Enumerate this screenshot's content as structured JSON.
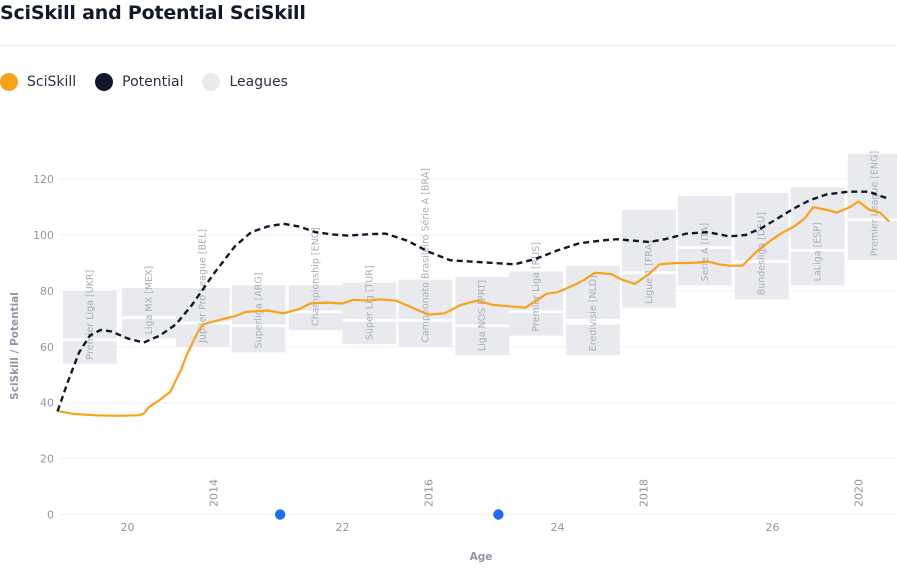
{
  "header": {
    "title": "SciSkill and Potential SciSkill"
  },
  "legend": [
    {
      "label": "SciSkill",
      "color": "#f9a11b"
    },
    {
      "label": "Potential",
      "color": "#10182a"
    },
    {
      "label": "Leagues",
      "color": "#e9eaee"
    }
  ],
  "chart_data": {
    "type": "line",
    "xlabel": "Age",
    "ylabel": "SciSkill / Potential",
    "xlim": [
      19.35,
      27.15
    ],
    "ylim": [
      0,
      130
    ],
    "x_ticks": [
      20,
      22,
      24,
      26
    ],
    "y_ticks": [
      0,
      20,
      40,
      60,
      80,
      100,
      120
    ],
    "year_ticks": [
      {
        "label": "2014",
        "x": 20.8
      },
      {
        "label": "2016",
        "x": 22.8
      },
      {
        "label": "2018",
        "x": 24.8
      },
      {
        "label": "2020",
        "x": 26.8
      }
    ],
    "markers": [
      {
        "x": 21.42,
        "y": 0
      },
      {
        "x": 23.45,
        "y": 0
      }
    ],
    "grid": true,
    "series": [
      {
        "name": "SciSkill",
        "color": "#f9a11b",
        "style": "solid",
        "points": [
          [
            19.35,
            37
          ],
          [
            19.5,
            36
          ],
          [
            19.7,
            35.5
          ],
          [
            19.9,
            35.3
          ],
          [
            20.1,
            35.5
          ],
          [
            20.15,
            36
          ],
          [
            20.2,
            38.5
          ],
          [
            20.3,
            41
          ],
          [
            20.4,
            44
          ],
          [
            20.45,
            48
          ],
          [
            20.5,
            52
          ],
          [
            20.55,
            57
          ],
          [
            20.6,
            61
          ],
          [
            20.65,
            65
          ],
          [
            20.7,
            68
          ],
          [
            20.85,
            69.5
          ],
          [
            21.0,
            71
          ],
          [
            21.1,
            72.5
          ],
          [
            21.3,
            73
          ],
          [
            21.45,
            72
          ],
          [
            21.6,
            73.5
          ],
          [
            21.7,
            75.5
          ],
          [
            21.85,
            75.8
          ],
          [
            22.0,
            75.5
          ],
          [
            22.1,
            76.8
          ],
          [
            22.25,
            76.5
          ],
          [
            22.35,
            77
          ],
          [
            22.5,
            76.5
          ],
          [
            22.65,
            74
          ],
          [
            22.8,
            71.5
          ],
          [
            22.95,
            72
          ],
          [
            23.1,
            75
          ],
          [
            23.25,
            76.5
          ],
          [
            23.4,
            75
          ],
          [
            23.55,
            74.5
          ],
          [
            23.7,
            74
          ],
          [
            23.82,
            77
          ],
          [
            23.9,
            79
          ],
          [
            24.0,
            79.5
          ],
          [
            24.15,
            82
          ],
          [
            24.25,
            84
          ],
          [
            24.35,
            86.5
          ],
          [
            24.5,
            86
          ],
          [
            24.6,
            84
          ],
          [
            24.72,
            82.5
          ],
          [
            24.85,
            86
          ],
          [
            24.95,
            89.5
          ],
          [
            25.1,
            90
          ],
          [
            25.25,
            90
          ],
          [
            25.4,
            90.5
          ],
          [
            25.5,
            89.5
          ],
          [
            25.6,
            89
          ],
          [
            25.72,
            89
          ],
          [
            25.85,
            94
          ],
          [
            25.98,
            98
          ],
          [
            26.1,
            101
          ],
          [
            26.2,
            103
          ],
          [
            26.3,
            106
          ],
          [
            26.38,
            110
          ],
          [
            26.5,
            109
          ],
          [
            26.6,
            108
          ],
          [
            26.72,
            110
          ],
          [
            26.8,
            112
          ],
          [
            26.9,
            109
          ],
          [
            27.0,
            108
          ],
          [
            27.08,
            105
          ]
        ]
      },
      {
        "name": "Potential",
        "color": "#10182a",
        "style": "dashed",
        "points": [
          [
            19.35,
            37
          ],
          [
            19.45,
            48
          ],
          [
            19.55,
            58
          ],
          [
            19.65,
            64
          ],
          [
            19.75,
            66
          ],
          [
            19.85,
            65.5
          ],
          [
            20.0,
            63
          ],
          [
            20.15,
            61.5
          ],
          [
            20.3,
            64
          ],
          [
            20.45,
            68
          ],
          [
            20.6,
            75
          ],
          [
            20.8,
            86
          ],
          [
            21.0,
            96
          ],
          [
            21.15,
            101
          ],
          [
            21.3,
            103
          ],
          [
            21.45,
            104
          ],
          [
            21.6,
            103
          ],
          [
            21.75,
            101
          ],
          [
            21.9,
            100.2
          ],
          [
            22.05,
            99.8
          ],
          [
            22.25,
            100.3
          ],
          [
            22.4,
            100.5
          ],
          [
            22.6,
            98
          ],
          [
            22.8,
            94
          ],
          [
            23.0,
            91
          ],
          [
            23.2,
            90.5
          ],
          [
            23.4,
            90
          ],
          [
            23.6,
            89.5
          ],
          [
            23.8,
            91.5
          ],
          [
            24.0,
            94.5
          ],
          [
            24.2,
            97
          ],
          [
            24.4,
            98
          ],
          [
            24.55,
            98.5
          ],
          [
            24.7,
            98
          ],
          [
            24.85,
            97.5
          ],
          [
            25.0,
            98.5
          ],
          [
            25.2,
            100.5
          ],
          [
            25.4,
            101
          ],
          [
            25.6,
            99.5
          ],
          [
            25.75,
            100
          ],
          [
            25.9,
            102.5
          ],
          [
            26.05,
            106
          ],
          [
            26.2,
            109.5
          ],
          [
            26.35,
            112.5
          ],
          [
            26.5,
            114.5
          ],
          [
            26.7,
            115.5
          ],
          [
            26.9,
            115.5
          ],
          [
            27.0,
            114
          ],
          [
            27.08,
            113
          ]
        ]
      }
    ],
    "leagues": [
      {
        "label": "Premier Liga [UKR]",
        "x0": 19.4,
        "x1": 19.9,
        "upper": [
          63,
          80
        ],
        "lower": [
          54,
          62
        ]
      },
      {
        "label": "Liga MX [MEX]",
        "x0": 19.95,
        "x1": 20.45,
        "upper": [
          71,
          81
        ],
        "lower": [
          63,
          70
        ]
      },
      {
        "label": "Jupiler Pro League [BEL]",
        "x0": 20.45,
        "x1": 20.95,
        "upper": [
          69,
          81
        ],
        "lower": [
          60,
          68
        ]
      },
      {
        "label": "Superliga [ARG]",
        "x0": 20.97,
        "x1": 21.47,
        "upper": [
          68,
          82
        ],
        "lower": [
          58,
          67
        ]
      },
      {
        "label": "Championship [ENG]",
        "x0": 21.5,
        "x1": 22.0,
        "upper": [
          73,
          82
        ],
        "lower": [
          66,
          72
        ]
      },
      {
        "label": "Süper Lig [TUR]",
        "x0": 22.0,
        "x1": 22.5,
        "upper": [
          70,
          83
        ],
        "lower": [
          61,
          69
        ]
      },
      {
        "label": "Campeonato Brasileiro Série A [BRA]",
        "x0": 22.52,
        "x1": 23.02,
        "upper": [
          70,
          84
        ],
        "lower": [
          60,
          69
        ]
      },
      {
        "label": "Liga NOS [PRT]",
        "x0": 23.05,
        "x1": 23.55,
        "upper": [
          68,
          85
        ],
        "lower": [
          57,
          67
        ]
      },
      {
        "label": "Premier Liga [RUS]",
        "x0": 23.55,
        "x1": 24.05,
        "upper": [
          73,
          87
        ],
        "lower": [
          64,
          72
        ]
      },
      {
        "label": "Eredivisie [NLD]",
        "x0": 24.08,
        "x1": 24.58,
        "upper": [
          70,
          89
        ],
        "lower": [
          57,
          68
        ]
      },
      {
        "label": "Ligue 1 [FRA]",
        "x0": 24.6,
        "x1": 25.1,
        "upper": [
          87,
          109
        ],
        "lower": [
          74,
          86
        ]
      },
      {
        "label": "Serie A [ITA]",
        "x0": 25.12,
        "x1": 25.62,
        "upper": [
          96,
          114
        ],
        "lower": [
          82,
          95
        ]
      },
      {
        "label": "Bundesliga [DEU]",
        "x0": 25.65,
        "x1": 26.15,
        "upper": [
          91,
          115
        ],
        "lower": [
          77,
          90
        ]
      },
      {
        "label": "LaLiga [ESP]",
        "x0": 26.17,
        "x1": 26.67,
        "upper": [
          95,
          117
        ],
        "lower": [
          82,
          94
        ]
      },
      {
        "label": "Premier League [ENG]",
        "x0": 26.7,
        "x1": 27.2,
        "upper": [
          106,
          129
        ],
        "lower": [
          91,
          105
        ]
      }
    ]
  }
}
